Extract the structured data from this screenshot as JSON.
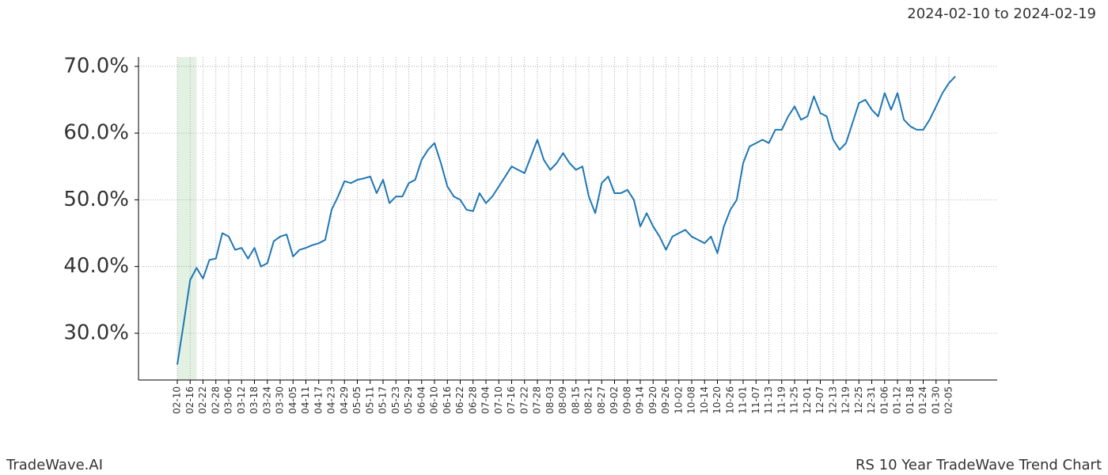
{
  "chart_data": {
    "type": "line",
    "subtitle": "2024-02-10 to 2024-02-19",
    "footer_left": "TradeWave.AI",
    "footer_right": "RS 10 Year TradeWave Trend Chart",
    "categories": [
      "02-10",
      null,
      "02-16",
      null,
      "02-22",
      null,
      "02-28",
      null,
      "03-06",
      null,
      "03-12",
      null,
      "03-18",
      null,
      "03-24",
      null,
      "03-30",
      null,
      "04-05",
      null,
      "04-11",
      null,
      "04-17",
      null,
      "04-23",
      null,
      "04-29",
      null,
      "05-05",
      null,
      "05-11",
      null,
      "05-17",
      null,
      "05-23",
      null,
      "05-29",
      null,
      "06-04",
      null,
      "06-10",
      null,
      "06-16",
      null,
      "06-22",
      null,
      "06-28",
      null,
      "07-04",
      null,
      "07-10",
      null,
      "07-16",
      null,
      "07-22",
      null,
      "07-28",
      null,
      "08-03",
      null,
      "08-09",
      null,
      "08-15",
      null,
      "08-21",
      null,
      "08-27",
      null,
      "09-02",
      null,
      "09-08",
      null,
      "09-14",
      null,
      "09-20",
      null,
      "09-26",
      null,
      "10-02",
      null,
      "10-08",
      null,
      "10-14",
      null,
      "10-20",
      null,
      "10-26",
      null,
      "11-01",
      null,
      "11-07",
      null,
      "11-13",
      null,
      "11-19",
      null,
      "11-25",
      null,
      "12-01",
      null,
      "12-07",
      null,
      "12-13",
      null,
      "12-19",
      null,
      "12-25",
      null,
      "12-31",
      null,
      "01-06",
      null,
      "01-12",
      null,
      "01-18",
      null,
      "01-24",
      null,
      "01-30",
      null,
      "02-05",
      null
    ],
    "series": [
      {
        "color": "#1f77b4",
        "values": [
          25.3,
          31.5,
          38,
          39.8,
          38.2,
          41,
          41.2,
          45,
          44.5,
          42.5,
          42.8,
          41.2,
          42.8,
          40,
          40.5,
          43.8,
          44.5,
          44.8,
          41.5,
          42.5,
          42.8,
          43.2,
          43.5,
          44,
          48.5,
          50.5,
          52.8,
          52.5,
          53,
          53.2,
          53.5,
          51,
          53,
          49.5,
          50.5,
          50.5,
          52.5,
          53,
          56,
          57.5,
          58.5,
          55.5,
          52,
          50.5,
          50,
          48.5,
          48.3,
          51,
          49.5,
          50.5,
          52,
          53.5,
          55,
          54.5,
          54,
          56.5,
          59,
          56,
          54.5,
          55.5,
          57,
          55.5,
          54.5,
          55,
          50.5,
          48,
          52.5,
          53.5,
          51,
          51,
          51.5,
          50,
          46,
          48,
          46,
          44.5,
          42.5,
          44.5,
          45,
          45.5,
          44.5,
          44,
          43.5,
          44.5,
          42,
          46,
          48.5,
          50,
          55.5,
          58,
          58.5,
          59,
          58.5,
          60.5,
          60.5,
          62.5,
          64,
          62,
          62.5,
          65.5,
          63,
          62.5,
          59,
          57.5,
          58.5,
          61.5,
          64.5,
          65,
          63.5,
          62.5,
          66,
          63.5,
          66,
          62,
          61,
          60.5,
          60.5,
          62,
          64,
          66,
          67.5,
          68.5
        ]
      }
    ],
    "ylim": [
      23,
      71.4
    ],
    "yticks": [
      {
        "value": 30,
        "label": "30.0%"
      },
      {
        "value": 40,
        "label": "40.0%"
      },
      {
        "value": 50,
        "label": "50.0%"
      },
      {
        "value": 60,
        "label": "60.0%"
      },
      {
        "value": 70,
        "label": "70.0%"
      }
    ],
    "highlight": [
      0,
      3
    ],
    "highlight_color": "#e3f1e3",
    "grid": true
  }
}
